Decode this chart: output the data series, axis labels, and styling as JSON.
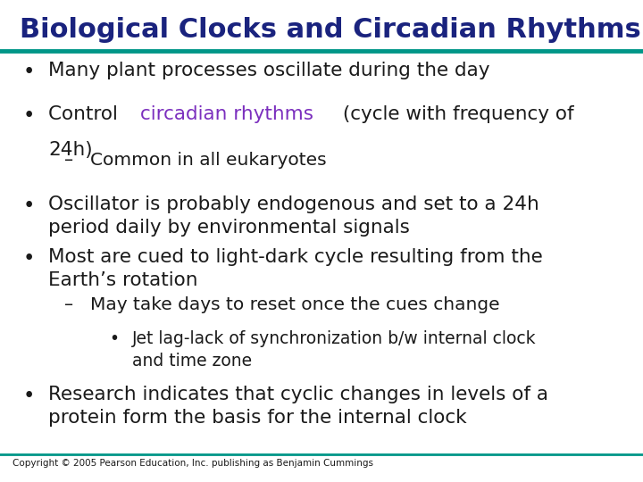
{
  "title": "Biological Clocks and Circadian Rhythms",
  "title_color": "#1a237e",
  "title_fontsize": 22,
  "line_color": "#009688",
  "bg_color": "#ffffff",
  "text_color": "#1a1a1a",
  "bullet_color": "#1a1a1a",
  "highlight_color": "#7b2fbe",
  "copyright": "Copyright © 2005 Pearson Education, Inc. publishing as Benjamin Cummings",
  "bullet_fontsize": 15.5,
  "sub_fontsize": 14.5,
  "subsub_fontsize": 13.5,
  "content": [
    {
      "level": 1,
      "text": "Many plant processes oscillate during the day"
    },
    {
      "level": 1,
      "text": "Control |circadian rhythms| (cycle with frequency of\n24h)"
    },
    {
      "level": 2,
      "text": "Common in all eukaryotes"
    },
    {
      "level": 1,
      "text": "Oscillator is probably endogenous and set to a 24h\nperiod daily by environmental signals"
    },
    {
      "level": 1,
      "text": "Most are cued to light-dark cycle resulting from the\nEarth’s rotation"
    },
    {
      "level": 2,
      "text": "May take days to reset once the cues change"
    },
    {
      "level": 3,
      "text": "Jet lag-lack of synchronization b/w internal clock\nand time zone"
    },
    {
      "level": 1,
      "text": "Research indicates that cyclic changes in levels of a\nprotein form the basis for the internal clock"
    }
  ]
}
